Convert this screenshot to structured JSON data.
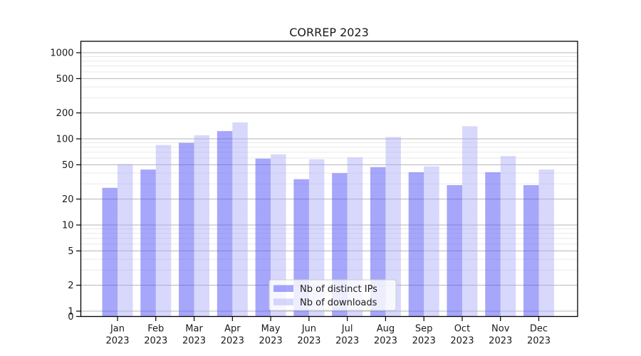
{
  "chart_data": {
    "type": "bar",
    "title": "CORREP 2023",
    "xlabel": "",
    "ylabel": "",
    "categories": [
      "Jan 2023",
      "Feb 2023",
      "Mar 2023",
      "Apr 2023",
      "May 2023",
      "Jun 2023",
      "Jul 2023",
      "Aug 2023",
      "Sep 2023",
      "Oct 2023",
      "Nov 2023",
      "Dec 2023"
    ],
    "series": [
      {
        "name": "Nb of distinct IPs",
        "color": "rgba(84,84,245,0.52)",
        "values": [
          27,
          44,
          90,
          123,
          59,
          34,
          40,
          47,
          41,
          29,
          41,
          29
        ]
      },
      {
        "name": "Nb of downloads",
        "color": "rgba(168,168,248,0.45)",
        "values": [
          51,
          85,
          110,
          155,
          66,
          58,
          61,
          105,
          48,
          140,
          63,
          44
        ]
      }
    ],
    "y_axis": {
      "scale": "log (symlog, 0 shown at baseline)",
      "ticks": [
        1000,
        500,
        200,
        100,
        50,
        20,
        10,
        5,
        2,
        1,
        0
      ],
      "ylim": [
        0,
        1300
      ],
      "minor_grid_steps": [
        3,
        4,
        6,
        7,
        8,
        9
      ]
    },
    "legend": {
      "position": "lower-center-inside",
      "entries": [
        "Nb of distinct IPs",
        "Nb of downloads"
      ]
    },
    "grid": {
      "major": true,
      "minor": true
    }
  },
  "colors": {
    "background": "#ffffff",
    "bar_ips_rendered": "#a8a8fa",
    "bar_downloads_rendered": "#d9d9fb",
    "grid_major": "#b4b4b4",
    "grid_minor": "#e9e9e9",
    "spine": "#000000",
    "legend_border": "#cccccc",
    "text": "#1a1a1a"
  }
}
